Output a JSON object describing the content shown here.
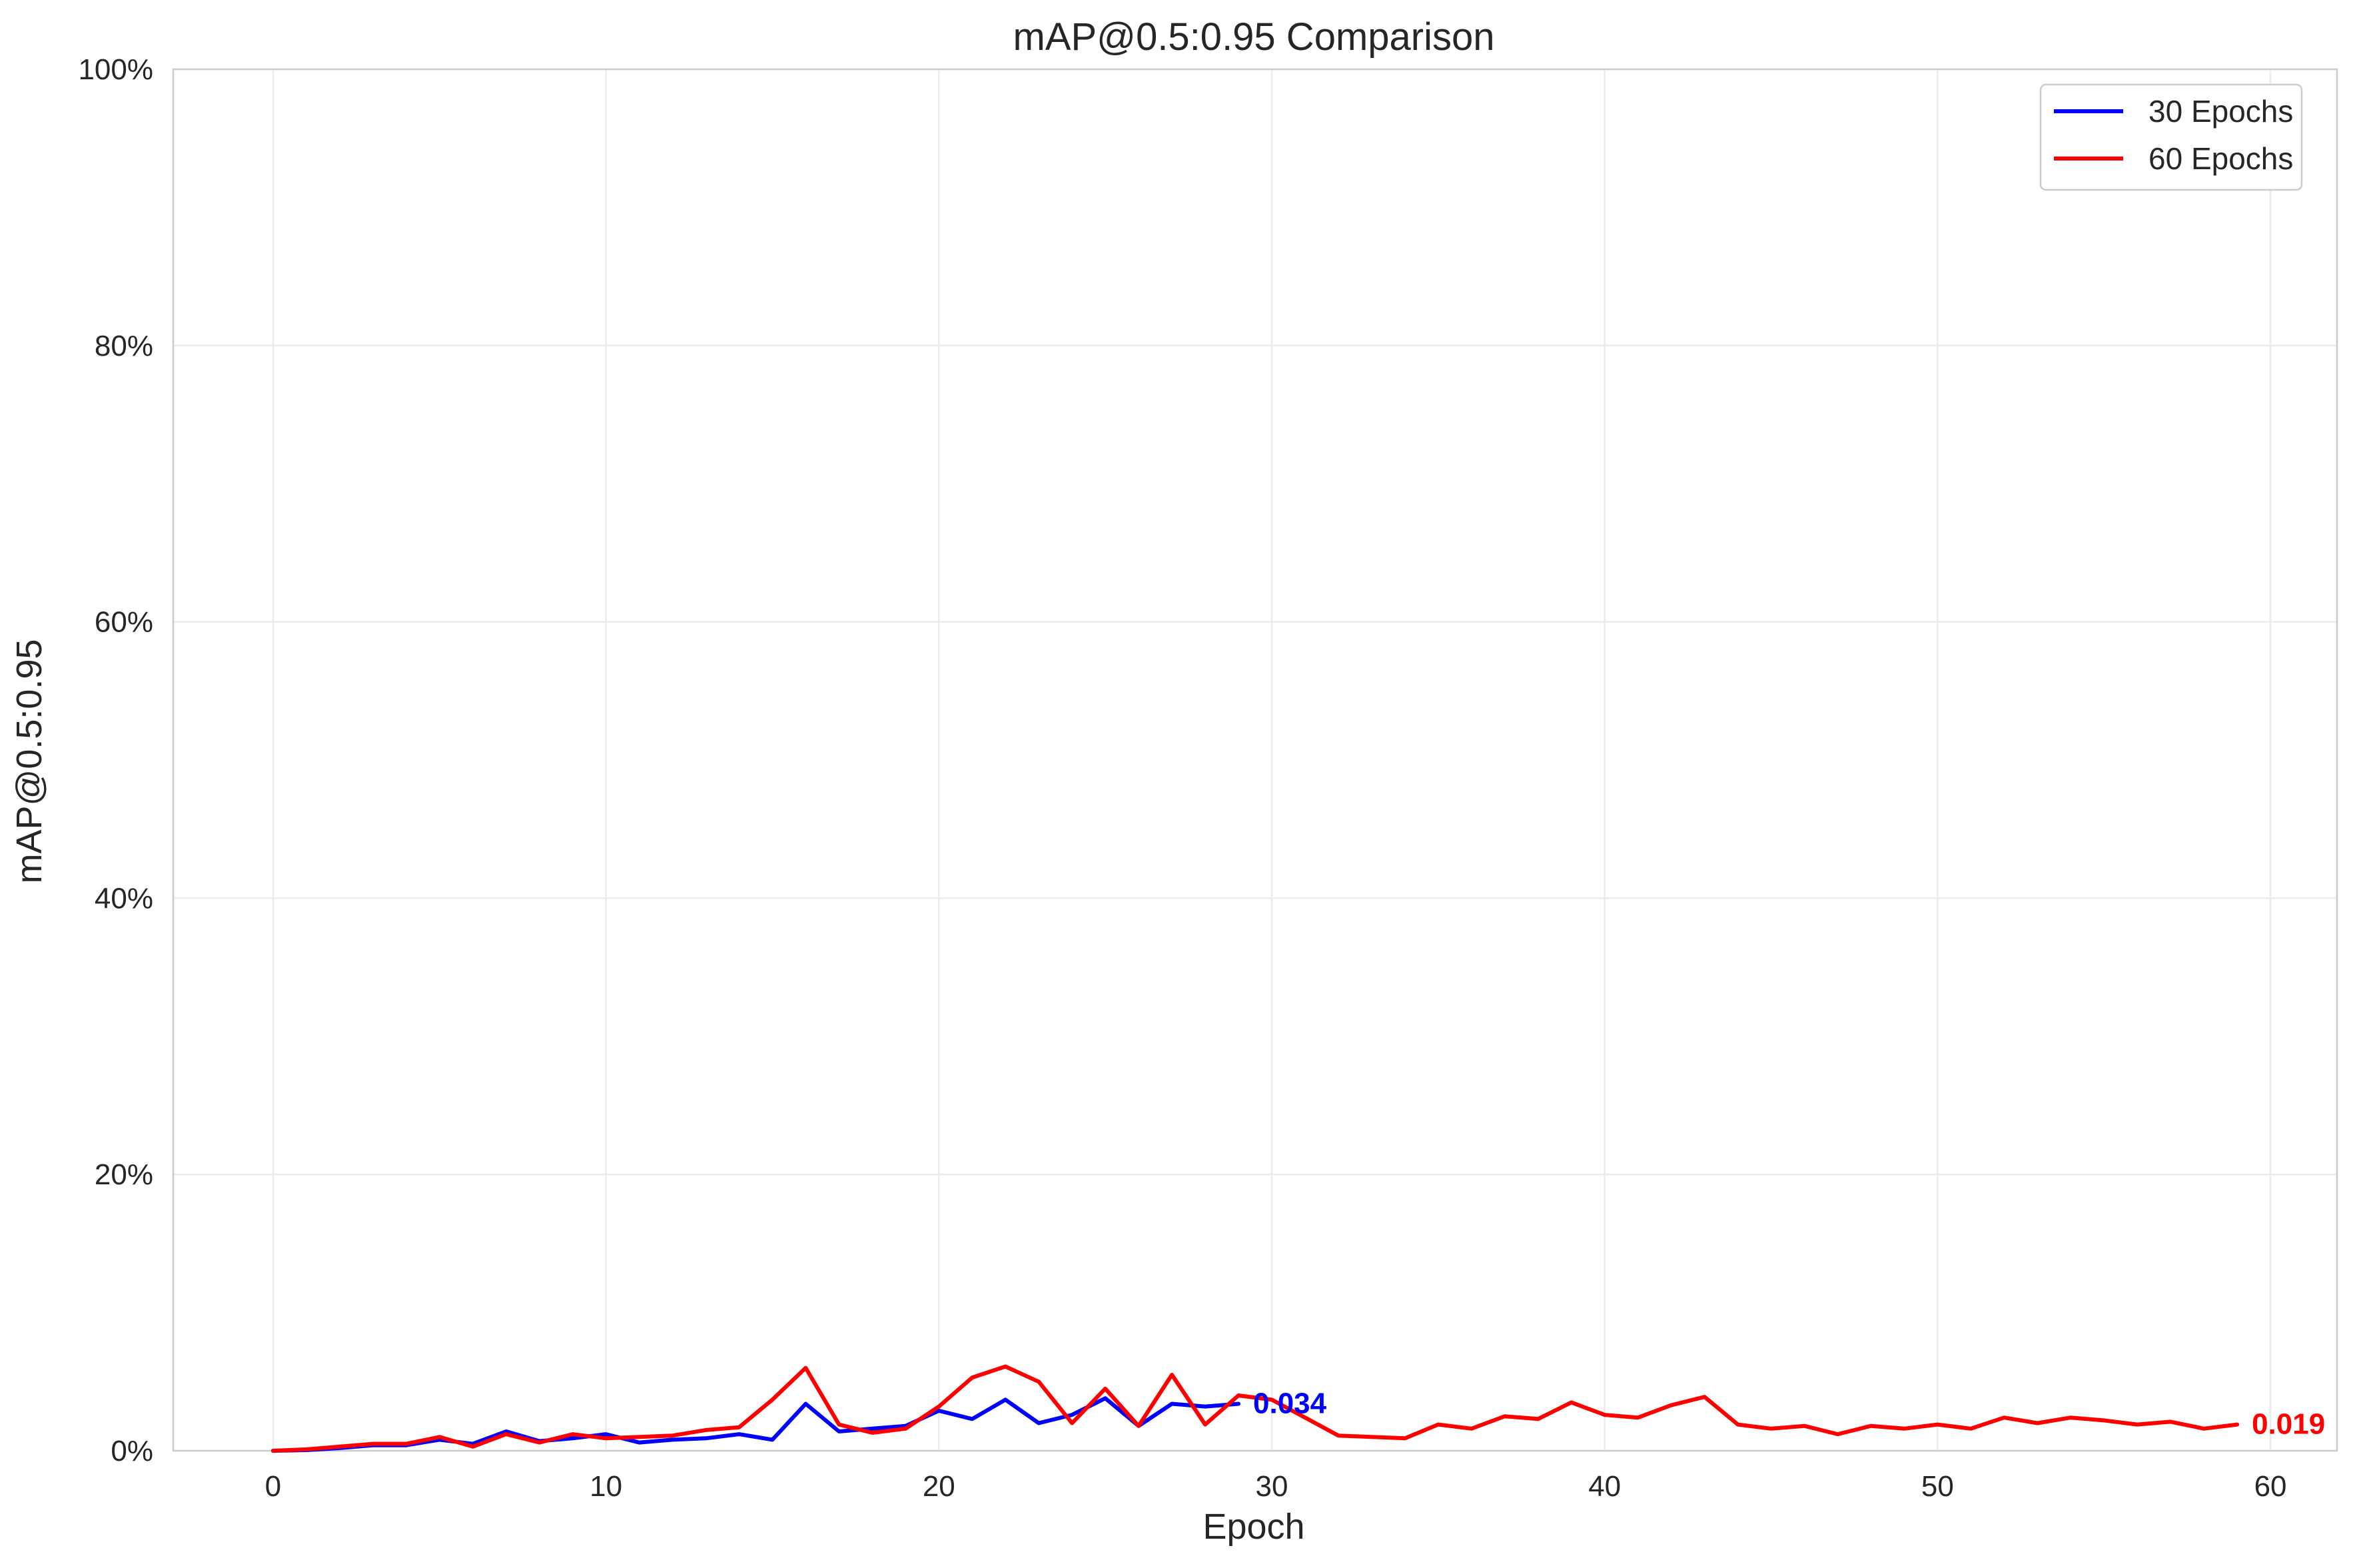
{
  "chart_data": {
    "type": "line",
    "title": "mAP@0.5:0.95 Comparison",
    "xlabel": "Epoch",
    "ylabel": "mAP@0.5:0.95",
    "xlim": [
      -3,
      62
    ],
    "ylim": [
      0,
      1
    ],
    "x_ticks": [
      0,
      10,
      20,
      30,
      40,
      50,
      60
    ],
    "x_tick_labels": [
      "0",
      "10",
      "20",
      "30",
      "40",
      "50",
      "60"
    ],
    "y_ticks": [
      0,
      0.2,
      0.4,
      0.6,
      0.8,
      1.0
    ],
    "y_tick_labels": [
      "0%",
      "20%",
      "40%",
      "60%",
      "80%",
      "100%"
    ],
    "grid": true,
    "legend_position": "top-right",
    "series": [
      {
        "name": "30 Epochs",
        "color": "#0000ff",
        "x": [
          0,
          1,
          2,
          3,
          4,
          5,
          6,
          7,
          8,
          9,
          10,
          11,
          12,
          13,
          14,
          15,
          16,
          17,
          18,
          19,
          20,
          21,
          22,
          23,
          24,
          25,
          26,
          27,
          28,
          29
        ],
        "values": [
          0.0,
          0.0005,
          0.002,
          0.004,
          0.004,
          0.008,
          0.005,
          0.014,
          0.007,
          0.009,
          0.012,
          0.006,
          0.008,
          0.009,
          0.012,
          0.008,
          0.034,
          0.014,
          0.016,
          0.018,
          0.029,
          0.023,
          0.037,
          0.02,
          0.026,
          0.038,
          0.018,
          0.034,
          0.032,
          0.034
        ],
        "end_label": "0.034"
      },
      {
        "name": "60 Epochs",
        "color": "#ff0000",
        "x": [
          0,
          1,
          2,
          3,
          4,
          5,
          6,
          7,
          8,
          9,
          10,
          11,
          12,
          13,
          14,
          15,
          16,
          17,
          18,
          19,
          20,
          21,
          22,
          23,
          24,
          25,
          26,
          27,
          28,
          29,
          30,
          31,
          32,
          33,
          34,
          35,
          36,
          37,
          38,
          39,
          40,
          41,
          42,
          43,
          44,
          45,
          46,
          47,
          48,
          49,
          50,
          51,
          52,
          53,
          54,
          55,
          56,
          57,
          58,
          59
        ],
        "values": [
          0.0,
          0.001,
          0.003,
          0.005,
          0.005,
          0.01,
          0.003,
          0.012,
          0.006,
          0.012,
          0.009,
          0.01,
          0.011,
          0.015,
          0.017,
          0.037,
          0.06,
          0.019,
          0.013,
          0.016,
          0.032,
          0.053,
          0.061,
          0.05,
          0.02,
          0.045,
          0.018,
          0.055,
          0.019,
          0.04,
          0.037,
          0.024,
          0.011,
          0.01,
          0.009,
          0.019,
          0.016,
          0.025,
          0.023,
          0.035,
          0.026,
          0.024,
          0.033,
          0.039,
          0.019,
          0.016,
          0.018,
          0.012,
          0.018,
          0.016,
          0.019,
          0.016,
          0.024,
          0.02,
          0.024,
          0.022,
          0.019,
          0.021,
          0.016,
          0.019
        ],
        "end_label": "0.019"
      }
    ]
  }
}
